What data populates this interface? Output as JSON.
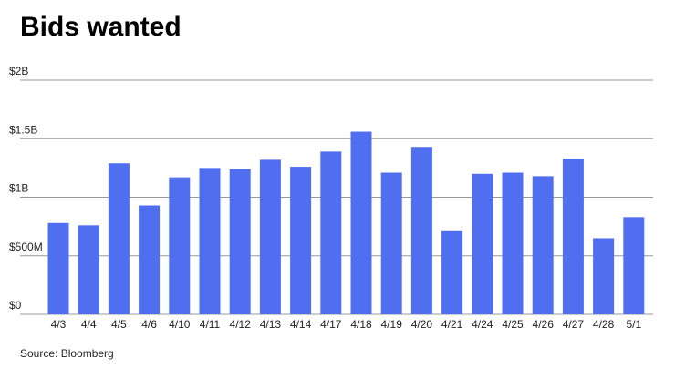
{
  "chart_data": {
    "type": "bar",
    "title": "Bids wanted",
    "source": "Source: Bloomberg",
    "categories": [
      "4/3",
      "4/4",
      "4/5",
      "4/6",
      "4/10",
      "4/11",
      "4/12",
      "4/13",
      "4/14",
      "4/17",
      "4/18",
      "4/19",
      "4/20",
      "4/21",
      "4/24",
      "4/25",
      "4/26",
      "4/27",
      "4/28",
      "5/1"
    ],
    "values": [
      780000000,
      760000000,
      1290000000,
      930000000,
      1170000000,
      1250000000,
      1240000000,
      1320000000,
      1260000000,
      1390000000,
      1560000000,
      1210000000,
      1430000000,
      710000000,
      1200000000,
      1210000000,
      1180000000,
      1330000000,
      650000000,
      830000000
    ],
    "color": "#4f6ef0",
    "ylim": [
      0,
      2000000000
    ],
    "yticks": [
      {
        "value": 0,
        "label": "$0"
      },
      {
        "value": 500000000,
        "label": "$500M"
      },
      {
        "value": 1000000000,
        "label": "$1B"
      },
      {
        "value": 1500000000,
        "label": "$1.5B"
      },
      {
        "value": 2000000000,
        "label": "$2B"
      }
    ],
    "grid": true
  }
}
